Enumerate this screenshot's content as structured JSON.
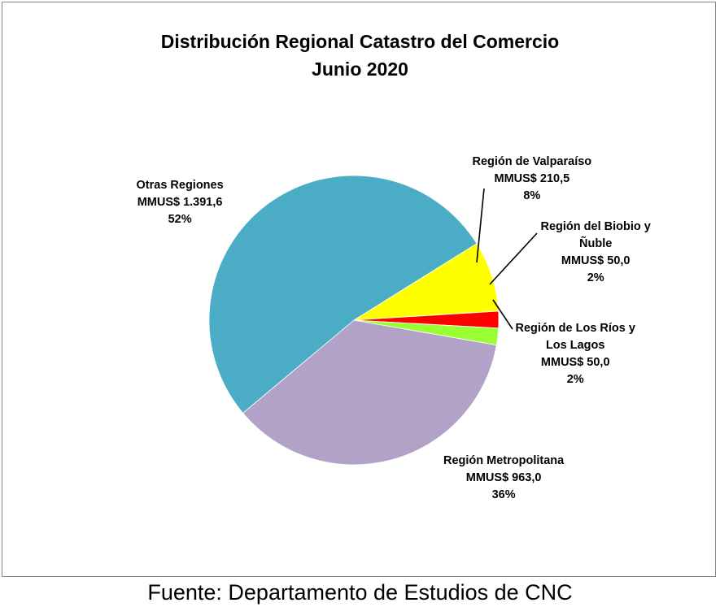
{
  "chart_data": {
    "type": "pie",
    "title": "Distribución Regional Catastro del Comercio",
    "subtitle": "Junio 2020",
    "unit_prefix": "MMUS$",
    "slices": [
      {
        "name": "Región de Valparaíso",
        "name_lines": [
          "Región de Valparaíso"
        ],
        "value": 210.5,
        "value_label": "MMUS$ 210,5",
        "percent_label": "8%",
        "color": "#ffff00"
      },
      {
        "name": "Región del Biobio y Ñuble",
        "name_lines": [
          "Región del Biobio y",
          "Ñuble"
        ],
        "value": 50.0,
        "value_label": "MMUS$ 50,0",
        "percent_label": "2%",
        "color": "#ff0000"
      },
      {
        "name": "Región de Los Ríos y Los Lagos",
        "name_lines": [
          "Región de Los Ríos y",
          "Los Lagos"
        ],
        "value": 50.0,
        "value_label": "MMUS$ 50,0",
        "percent_label": "2%",
        "color": "#99ff33"
      },
      {
        "name": "Región Metropolitana",
        "name_lines": [
          "Región Metropolitana"
        ],
        "value": 963.0,
        "value_label": "MMUS$ 963,0",
        "percent_label": "36%",
        "color": "#b2a2c7"
      },
      {
        "name": "Otras Regiones",
        "name_lines": [
          "Otras Regiones"
        ],
        "value": 1391.6,
        "value_label": "MMUS$ 1.391,6",
        "percent_label": "52%",
        "color": "#4bacc6"
      }
    ],
    "legend": "none",
    "data_labels": "outside"
  },
  "footer": {
    "source": "Fuente: Departamento de Estudios de CNC"
  }
}
